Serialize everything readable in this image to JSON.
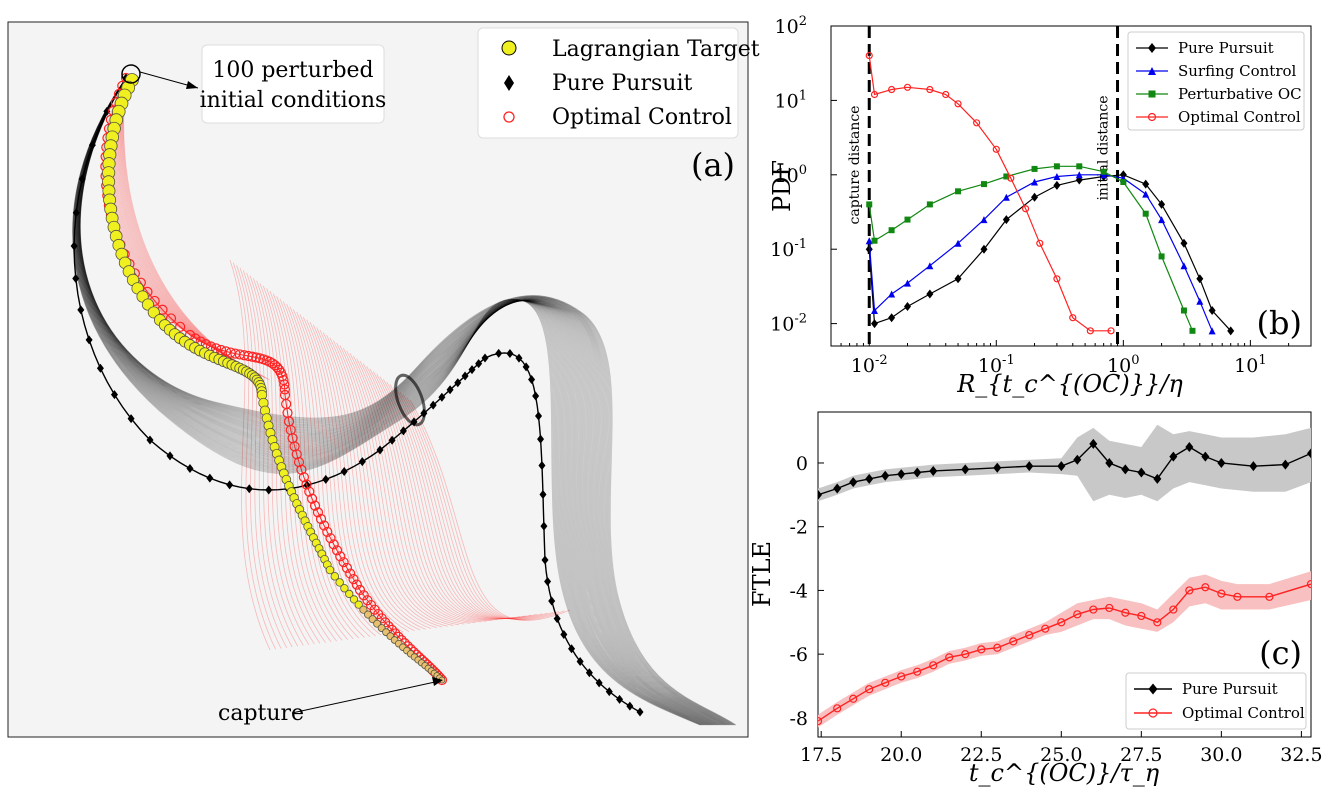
{
  "panel_a": {
    "label": "(a)",
    "legend": [
      {
        "label": "Lagrangian Target",
        "marker": "circle",
        "color": "#f0f020"
      },
      {
        "label": "Pure Pursuit",
        "marker": "diamond",
        "color": "#000000"
      },
      {
        "label": "Optimal Control",
        "marker": "open-circle",
        "color": "#ff2222"
      }
    ],
    "annotations": {
      "start": "100 perturbed\ninitial conditions",
      "start_line1": "100 perturbed",
      "start_line2": "initial conditions",
      "end": "capture"
    },
    "colors": {
      "background": "#f4f4f4",
      "target": "#f0f020",
      "pursuit": "#000000",
      "optimal": "#ff2222"
    }
  },
  "chart_data": [
    {
      "panel": "(b)",
      "type": "line",
      "xscale": "log",
      "yscale": "log",
      "xlim": [
        0.005,
        30
      ],
      "ylim": [
        0.005,
        100
      ],
      "xlabel": "R_{t_c^{(OC)}}/η",
      "ylabel": "PDF",
      "x_ticks": [
        "10^-2",
        "10^-1",
        "10^0",
        "10^1"
      ],
      "y_ticks": [
        "10^-2",
        "10^-1",
        "10^0",
        "10^1",
        "10^2"
      ],
      "vlines": [
        {
          "x": 0.01,
          "label": "capture distance"
        },
        {
          "x": 0.9,
          "label": "initial distance"
        }
      ],
      "legend_position": "upper-right",
      "series": [
        {
          "name": "Pure Pursuit",
          "color": "#000000",
          "marker": "diamond",
          "x": [
            0.01,
            0.011,
            0.015,
            0.02,
            0.03,
            0.05,
            0.08,
            0.12,
            0.2,
            0.3,
            0.45,
            0.7,
            1.0,
            1.5,
            2.0,
            3.0,
            4.0,
            5.0,
            7.0
          ],
          "y": [
            0.1,
            0.01,
            0.012,
            0.017,
            0.025,
            0.04,
            0.1,
            0.25,
            0.5,
            0.72,
            0.85,
            0.95,
            1.0,
            0.75,
            0.4,
            0.12,
            0.04,
            0.015,
            0.008
          ]
        },
        {
          "name": "Surfing Control",
          "color": "#0000ee",
          "marker": "triangle",
          "x": [
            0.01,
            0.011,
            0.015,
            0.02,
            0.03,
            0.05,
            0.08,
            0.12,
            0.2,
            0.3,
            0.45,
            0.7,
            1.0,
            1.5,
            2.0,
            3.0,
            4.0,
            5.0
          ],
          "y": [
            0.13,
            0.015,
            0.025,
            0.035,
            0.06,
            0.12,
            0.25,
            0.5,
            0.8,
            0.95,
            1.0,
            1.0,
            0.9,
            0.55,
            0.25,
            0.06,
            0.02,
            0.008
          ]
        },
        {
          "name": "Perturbative OC",
          "color": "#118811",
          "marker": "square",
          "x": [
            0.01,
            0.011,
            0.015,
            0.02,
            0.03,
            0.05,
            0.08,
            0.12,
            0.2,
            0.3,
            0.45,
            0.7,
            1.0,
            1.5,
            2.0,
            3.0,
            3.5
          ],
          "y": [
            0.4,
            0.13,
            0.18,
            0.25,
            0.4,
            0.6,
            0.75,
            0.95,
            1.2,
            1.3,
            1.3,
            1.1,
            0.8,
            0.3,
            0.08,
            0.015,
            0.008
          ]
        },
        {
          "name": "Optimal Control",
          "color": "#ff2222",
          "marker": "open-circle",
          "x": [
            0.01,
            0.011,
            0.015,
            0.02,
            0.03,
            0.04,
            0.05,
            0.07,
            0.1,
            0.13,
            0.17,
            0.22,
            0.3,
            0.4,
            0.55,
            0.8
          ],
          "y": [
            40,
            12,
            14,
            15,
            14,
            12,
            9,
            5,
            2.2,
            0.9,
            0.35,
            0.12,
            0.04,
            0.012,
            0.008,
            0.008
          ]
        }
      ]
    },
    {
      "panel": "(c)",
      "type": "line",
      "xlim": [
        17.4,
        32.8
      ],
      "ylim": [
        -8.6,
        1.6
      ],
      "xlabel": "t_c^{(OC)}/τ_η",
      "ylabel": "FTLE",
      "x_ticks": [
        "17.5",
        "20.0",
        "22.5",
        "25.0",
        "27.5",
        "30.0",
        "32.5"
      ],
      "y_ticks": [
        "-8",
        "-6",
        "-4",
        "-2",
        "0"
      ],
      "legend_position": "lower-right",
      "series": [
        {
          "name": "Pure Pursuit",
          "color": "#000000",
          "band_color": "#c8c8c8",
          "marker": "diamond",
          "x": [
            17.4,
            18.0,
            18.5,
            19.0,
            19.5,
            20.0,
            20.5,
            21.0,
            22.0,
            23.0,
            24.0,
            25.0,
            25.5,
            26.0,
            26.5,
            27.0,
            27.5,
            28.0,
            28.5,
            29.0,
            29.5,
            30.0,
            31.0,
            32.0,
            32.8
          ],
          "y": [
            -1.0,
            -0.8,
            -0.6,
            -0.5,
            -0.4,
            -0.35,
            -0.3,
            -0.25,
            -0.2,
            -0.15,
            -0.1,
            -0.1,
            0.1,
            0.6,
            0.0,
            -0.2,
            -0.3,
            -0.5,
            0.2,
            0.5,
            0.2,
            0.0,
            -0.1,
            -0.05,
            0.3
          ],
          "lower": [
            -1.2,
            -1.0,
            -0.8,
            -0.7,
            -0.6,
            -0.55,
            -0.5,
            -0.45,
            -0.4,
            -0.35,
            -0.3,
            -0.35,
            -0.4,
            -1.2,
            -1.0,
            -1.1,
            -1.0,
            -1.2,
            -0.8,
            -0.6,
            -0.7,
            -0.8,
            -0.9,
            -0.9,
            -0.6
          ],
          "upper": [
            -0.8,
            -0.6,
            -0.4,
            -0.3,
            -0.2,
            -0.15,
            -0.1,
            -0.05,
            0.0,
            0.05,
            0.1,
            0.15,
            0.8,
            1.1,
            0.7,
            0.6,
            0.5,
            1.2,
            0.9,
            1.0,
            0.9,
            0.8,
            0.8,
            0.9,
            1.1
          ]
        },
        {
          "name": "Optimal Control",
          "color": "#ff2222",
          "band_color": "#f8c0c0",
          "marker": "open-circle",
          "x": [
            17.4,
            18.0,
            18.5,
            19.0,
            19.5,
            20.0,
            20.5,
            21.0,
            21.5,
            22.0,
            22.5,
            23.0,
            23.5,
            24.0,
            24.5,
            25.0,
            25.5,
            26.0,
            26.5,
            27.0,
            27.5,
            28.0,
            28.5,
            29.0,
            29.5,
            30.0,
            30.5,
            31.5,
            32.8
          ],
          "y": [
            -8.1,
            -7.7,
            -7.4,
            -7.1,
            -6.9,
            -6.7,
            -6.55,
            -6.35,
            -6.1,
            -6.0,
            -5.85,
            -5.8,
            -5.6,
            -5.4,
            -5.2,
            -5.0,
            -4.75,
            -4.6,
            -4.55,
            -4.7,
            -4.8,
            -5.0,
            -4.6,
            -4.0,
            -3.9,
            -4.1,
            -4.2,
            -4.2,
            -3.8
          ],
          "lower": [
            -8.3,
            -7.9,
            -7.6,
            -7.3,
            -7.1,
            -6.9,
            -6.75,
            -6.55,
            -6.3,
            -6.2,
            -6.05,
            -6.0,
            -5.8,
            -5.6,
            -5.4,
            -5.3,
            -5.1,
            -4.9,
            -4.9,
            -5.1,
            -5.2,
            -5.3,
            -5.0,
            -4.5,
            -4.4,
            -4.6,
            -4.6,
            -4.6,
            -4.3
          ],
          "upper": [
            -7.9,
            -7.5,
            -7.2,
            -6.9,
            -6.7,
            -6.5,
            -6.35,
            -6.15,
            -5.9,
            -5.8,
            -5.65,
            -5.6,
            -5.4,
            -5.2,
            -5.0,
            -4.7,
            -4.4,
            -4.3,
            -4.2,
            -4.3,
            -4.4,
            -4.6,
            -4.1,
            -3.6,
            -3.5,
            -3.7,
            -3.8,
            -3.8,
            -3.4
          ]
        }
      ]
    }
  ]
}
